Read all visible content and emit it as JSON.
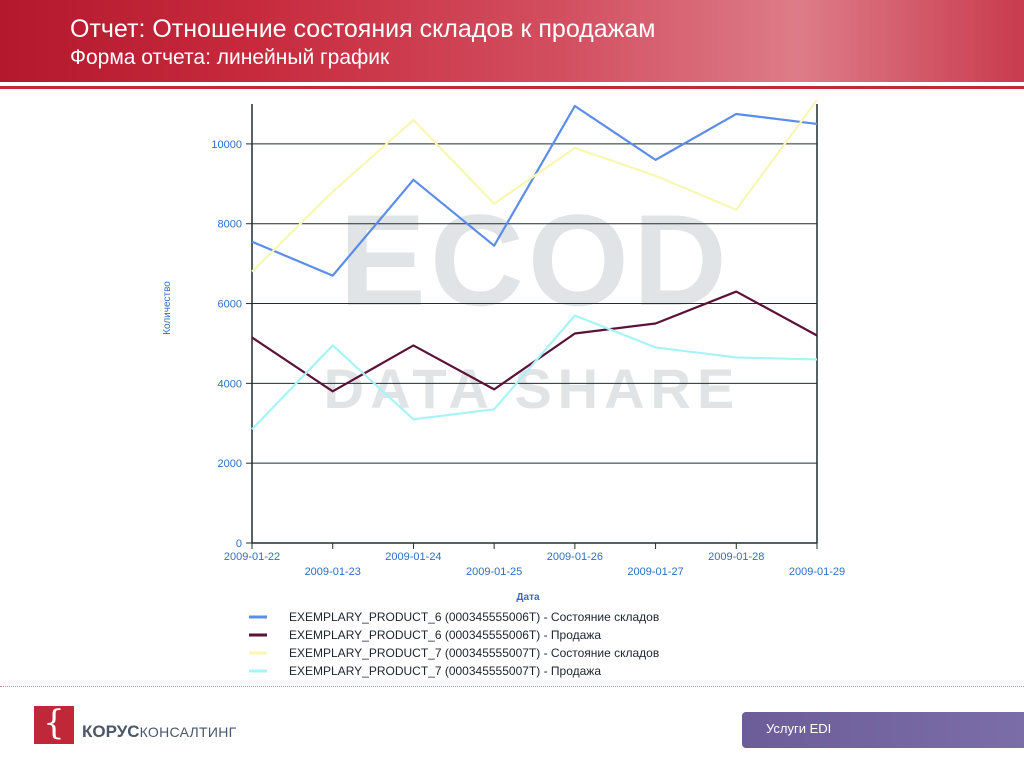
{
  "header": {
    "title": "Отчет: Отношение состояния складов к продажам",
    "subtitle": "Форма отчета: линейный график"
  },
  "watermark": {
    "line1": "ECOD",
    "line2": "DATA SHARE"
  },
  "chart_data": {
    "type": "line",
    "xlabel": "Дата",
    "ylabel": "Количество",
    "ylim": [
      0,
      11000
    ],
    "yticks": [
      "0",
      "2000",
      "4000",
      "6000",
      "8000",
      "10000"
    ],
    "x": [
      "2009-01-22",
      "2009-01-23",
      "2009-01-24",
      "2009-01-25",
      "2009-01-26",
      "2009-01-27",
      "2009-01-28",
      "2009-01-29"
    ],
    "grid": "horizontal",
    "legend_position": "bottom",
    "series": [
      {
        "name": "EXEMPLARY_PRODUCT_6  (000345555006T)  -  Состояние складов",
        "color": "#5b8dea",
        "values": [
          7550,
          6700,
          9100,
          7450,
          10950,
          9600,
          10750,
          10500
        ]
      },
      {
        "name": "EXEMPLARY_PRODUCT_6  (000345555006T)  -  Продажа",
        "color": "#5a1238",
        "values": [
          5150,
          3800,
          4950,
          3850,
          5250,
          5500,
          6300,
          5200
        ]
      },
      {
        "name": "EXEMPLARY_PRODUCT_7  (000345555007T)  -  Состояние складов",
        "color": "#f8f7b4",
        "values": [
          6800,
          8800,
          10600,
          8500,
          9900,
          9200,
          8350,
          11100
        ]
      },
      {
        "name": "EXEMPLARY_PRODUCT_7  (000345555007T)  -  Продажа",
        "color": "#a8f3f6",
        "values": [
          2850,
          4950,
          3100,
          3350,
          5700,
          4900,
          4650,
          4600
        ]
      }
    ]
  },
  "footer": {
    "logo_glyph": "{",
    "company_bold": "КОРУС",
    "company_light": "КОНСАЛТИНГ",
    "service_label": "Услуги EDI"
  }
}
